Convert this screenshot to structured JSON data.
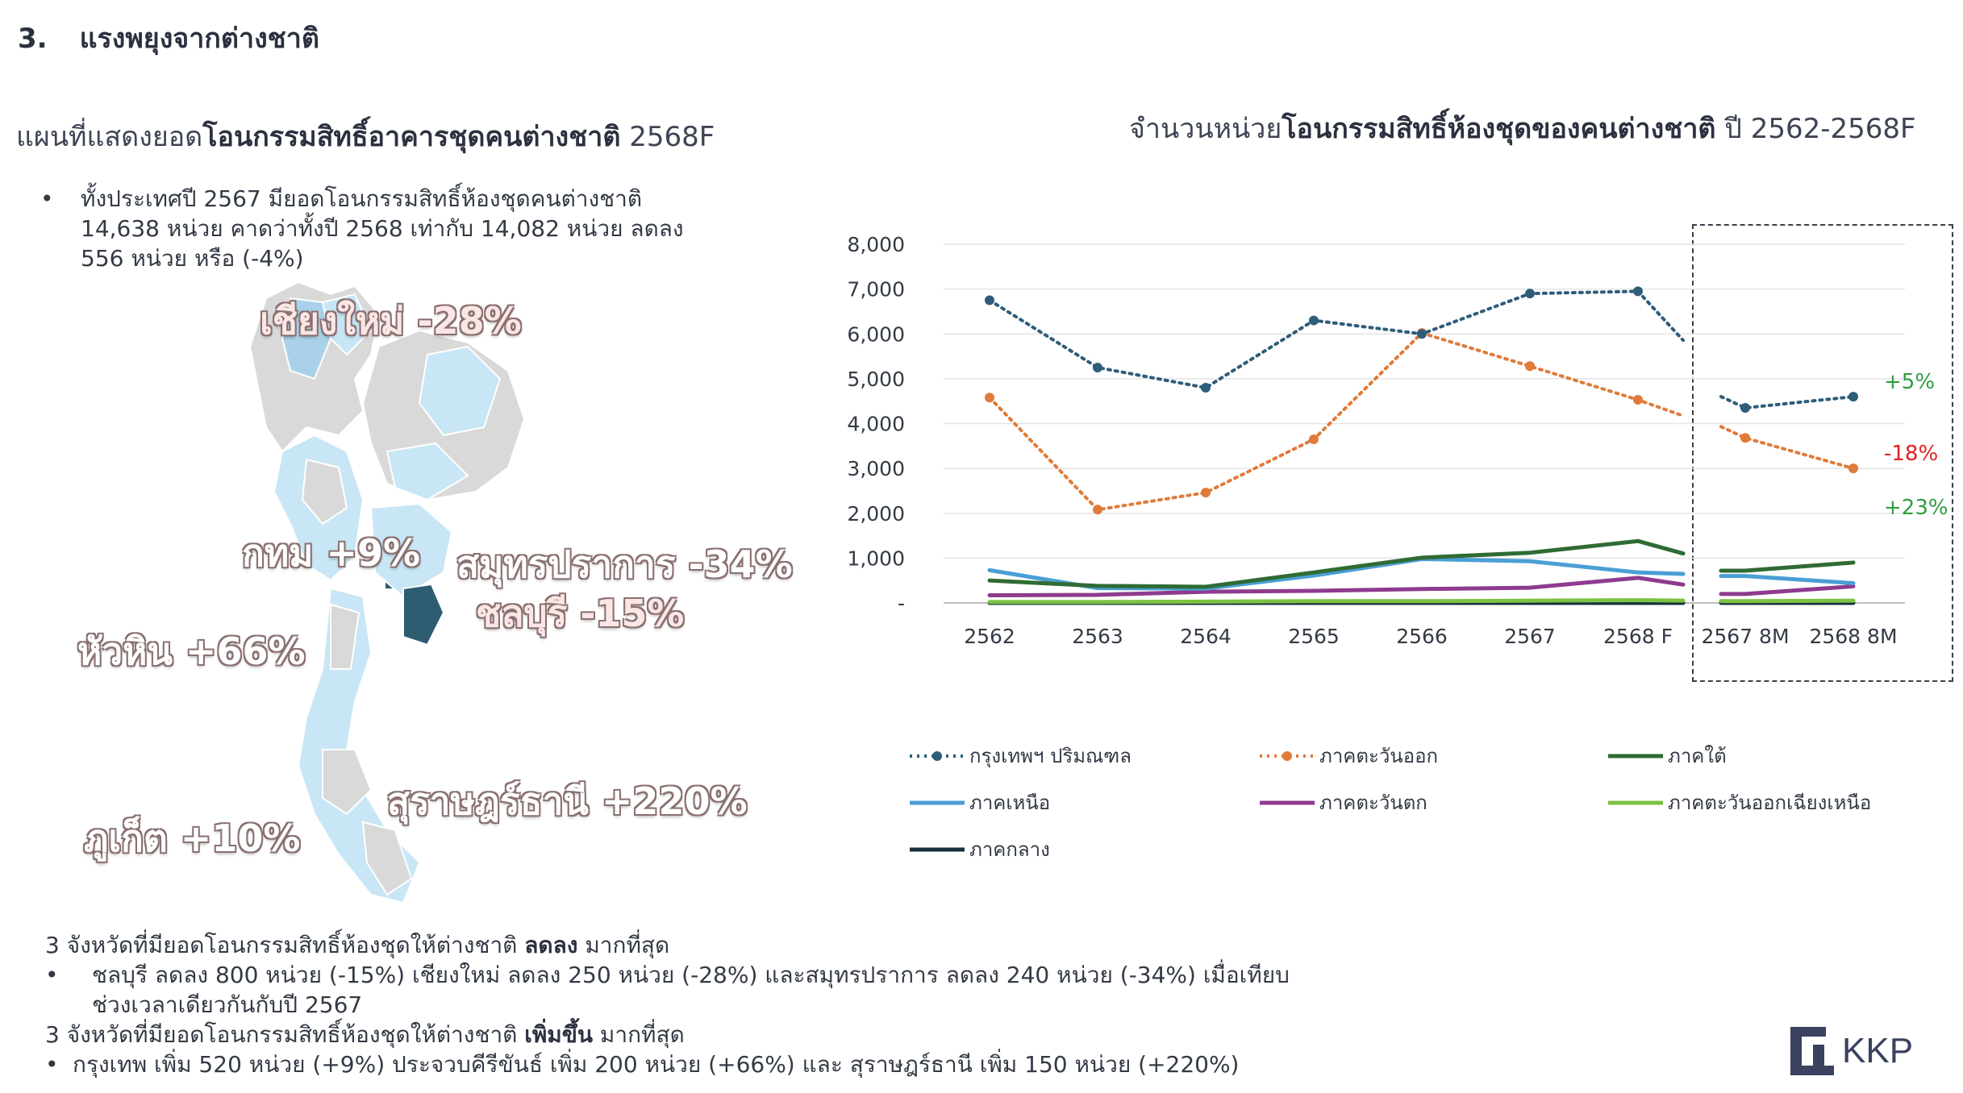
{
  "header": {
    "number": "3.",
    "title": "แรงพยุงจากต่างชาติ"
  },
  "map_title": {
    "prefix": "แผนที่แสดงยอด",
    "bold": "โอนกรรมสิทธิ์อาคารชุดคนต่างชาติ",
    "suffix": " 2568F"
  },
  "chart_title": {
    "prefix": "จำนวนหน่วย",
    "bold": "โอนกรรมสิทธิ์ห้องชุดของคนต่างชาติ",
    "suffix": " ปี 2562-2568F"
  },
  "summary": {
    "bullet": "•",
    "lines": [
      "ทั้งประเทศปี 2567 มียอดโอนกรรมสิทธิ์ห้องชุดคนต่างชาติ",
      "14,638 หน่วย คาดว่าทั้งปี 2568 เท่ากับ 14,082 หน่วย ลดลง",
      "556 หน่วย หรือ (-4%)"
    ]
  },
  "map_labels": {
    "chiang_mai": "เชียงใหม่ -28%",
    "bangkok": "กทม +9%",
    "samut_prakan": "สมุทรปราการ -34%",
    "chonburi": "ชลบุรี -15%",
    "hua_hin": "หัวหิน +66%",
    "surat_thani": "สุราษฎร์ธานี +220%",
    "phuket": "ภูเก็ต +10%"
  },
  "bottom": {
    "line1_prefix": "3 จังหวัดที่มียอดโอนกรรมสิทธิ์ห้องชุดให้ต่างชาติ ",
    "line1_bold": "ลดลง",
    "line1_suffix": " มากที่สุด",
    "line2": "ชลบุรี ลดลง 800 หน่วย (-15%)   เชียงใหม่ ลดลง 250 หน่วย (-28%)  และสมุทรปราการ ลดลง 240 หน่วย (-34%) เมื่อเทียบ",
    "line3": "ช่วงเวลาเดียวกันกับปี 2567",
    "line4_prefix": "3 จังหวัดที่มียอดโอนกรรมสิทธิ์ห้องชุดให้ต่างชาติ ",
    "line4_bold": "เพิ่มขึ้น",
    "line4_suffix": " มากที่สุด",
    "line5": "กรุงเทพ เพิ่ม 520 หน่วย (+9%) ประจวบคีรีขันธ์ เพิ่ม 200 หน่วย (+66%) และ สุราษฎร์ธานี เพิ่ม 150 หน่วย (+220%)",
    "bullet": "•"
  },
  "logo": {
    "text": "KKP"
  },
  "colors": {
    "bangkok": "#2e5d7a",
    "east": "#e07b39",
    "south": "#2f6b34",
    "north": "#4a9fd4",
    "west": "#8e3b8e",
    "northeast": "#7dc242",
    "central": "#17303d",
    "positive": "#2e9e3e",
    "negative": "#e02020",
    "map_light": "#c8e6f5",
    "map_gray": "#d9d9d9",
    "map_dark": "#2e5d72"
  },
  "chart_data": {
    "type": "line",
    "categories_main": [
      "2562",
      "2563",
      "2564",
      "2565",
      "2566",
      "2567",
      "2568 F"
    ],
    "categories_inset": [
      "2567 8M",
      "2568 8M"
    ],
    "y_ticks": [
      "8,000",
      "7,000",
      "6,000",
      "5,000",
      "4,000",
      "3,000",
      "2,000",
      "1,000",
      "-"
    ],
    "ylim": [
      0,
      8000
    ],
    "series": [
      {
        "name": "กรุงเทพฯ ปริมณฑล",
        "style": "dotted",
        "markers": true,
        "color_key": "bangkok",
        "values": [
          6750,
          5250,
          4800,
          6300,
          6000,
          6900,
          6950
        ],
        "inset": [
          4350,
          4600
        ]
      },
      {
        "name": "ภาคตะวันออก",
        "style": "dotted",
        "markers": true,
        "color_key": "east",
        "values": [
          4580,
          2080,
          2460,
          3650,
          6020,
          5280,
          4530
        ],
        "inset": [
          3680,
          3000
        ]
      },
      {
        "name": "ภาคใต้",
        "style": "solid",
        "markers": false,
        "color_key": "south",
        "values": [
          500,
          380,
          360,
          680,
          1010,
          1120,
          1380
        ],
        "inset": [
          720,
          900
        ]
      },
      {
        "name": "ภาคเหนือ",
        "style": "solid",
        "markers": false,
        "color_key": "north",
        "values": [
          730,
          330,
          320,
          610,
          980,
          930,
          680
        ],
        "inset": [
          600,
          440
        ]
      },
      {
        "name": "ภาคตะวันตก",
        "style": "solid",
        "markers": false,
        "color_key": "west",
        "values": [
          170,
          180,
          250,
          270,
          310,
          340,
          560
        ],
        "inset": [
          200,
          370
        ]
      },
      {
        "name": "ภาคตะวันออกเฉียงเหนือ",
        "style": "solid",
        "markers": false,
        "color_key": "northeast",
        "values": [
          20,
          20,
          30,
          40,
          40,
          50,
          60
        ],
        "inset": [
          40,
          50
        ]
      },
      {
        "name": "ภาคกลาง",
        "style": "solid",
        "markers": false,
        "color_key": "central",
        "values": [
          0,
          0,
          0,
          0,
          0,
          0,
          0
        ],
        "inset": [
          0,
          0
        ]
      }
    ],
    "annotations": [
      {
        "text": "+5%",
        "color_key": "positive",
        "series": "กรุงเทพฯ ปริมณฑล"
      },
      {
        "text": "-18%",
        "color_key": "negative",
        "series": "ภาคตะวันออก"
      },
      {
        "text": "+23%",
        "color_key": "positive",
        "series": "ภาคใต้"
      }
    ]
  }
}
